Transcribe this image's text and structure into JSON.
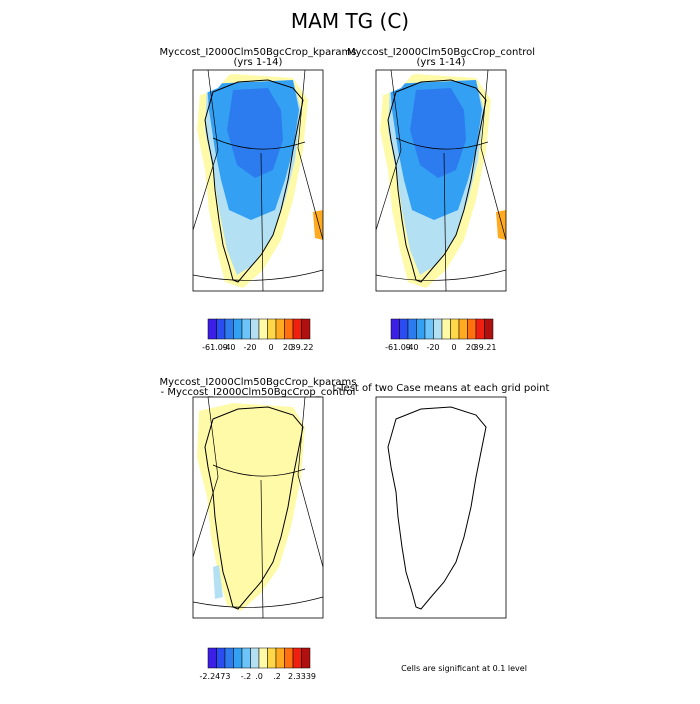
{
  "header": {
    "title": "MAM TG (C)"
  },
  "panels": [
    {
      "title": "Myccost_I2000Clm50BgcCrop_kparams",
      "subtitle": "(yrs 1-14)"
    },
    {
      "title": "Myccost_I2000Clm50BgcCrop_control",
      "subtitle": "(yrs 1-14)"
    },
    {
      "title": "Myccost_I2000Clm50BgcCrop_kparams",
      "subtitle": "- Myccost_I2000Clm50BgcCrop_control"
    },
    {
      "title": "t-Test of two Case means at each grid point"
    }
  ],
  "colorbars": [
    {
      "labels": [
        "-61.09",
        "-40",
        "-20",
        "0",
        "20",
        "39.22"
      ]
    },
    {
      "labels": [
        "-61.09",
        "-40",
        "-20",
        "0",
        "20",
        "39.21"
      ]
    },
    {
      "labels": [
        "-2.2473",
        "-.2",
        ".0",
        ".2",
        "2.3339"
      ]
    }
  ],
  "palette": [
    "#3c1ee6",
    "#2a4cf0",
    "#2c7cf0",
    "#34a0f4",
    "#6cc4f8",
    "#b4e0f4",
    "#fffaa8",
    "#ffd84a",
    "#ffaa20",
    "#ff7010",
    "#f02010",
    "#b01010"
  ],
  "note": "Cells are significant at 0.1 level"
}
